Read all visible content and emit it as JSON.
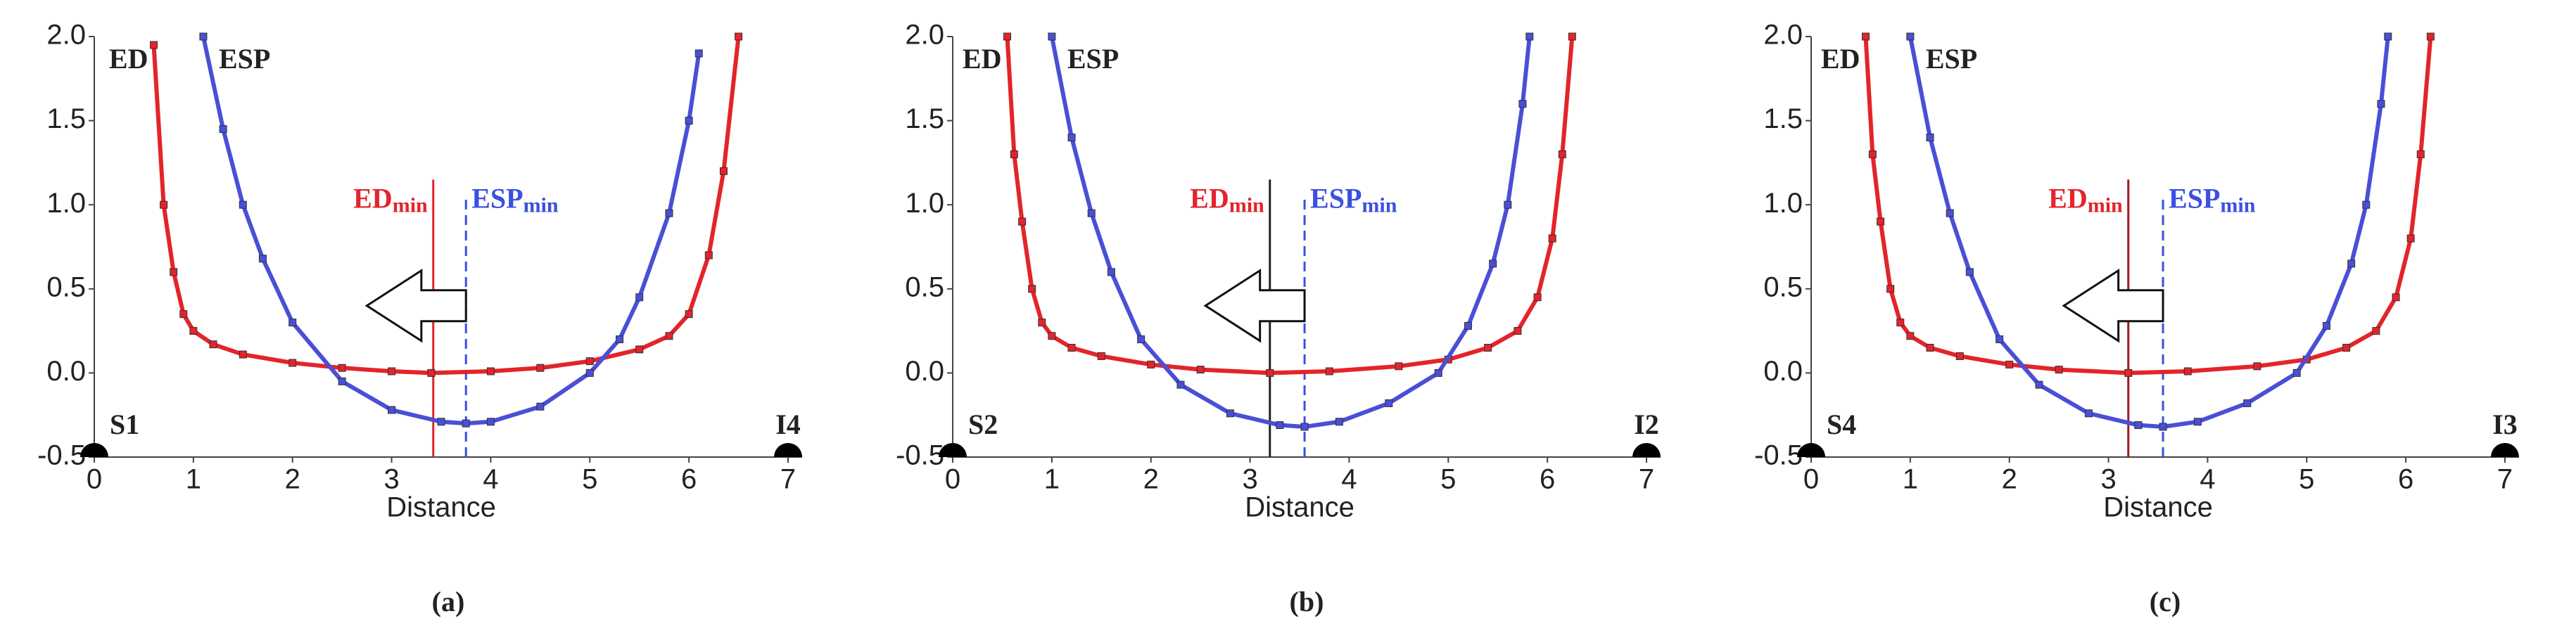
{
  "chart_data": [
    {
      "type": "line",
      "panel_label": "(a)",
      "xlabel": "Distance",
      "xlim": [
        0,
        7
      ],
      "ylim": [
        -0.5,
        2
      ],
      "xticks": [
        0,
        1,
        2,
        3,
        4,
        5,
        6,
        7
      ],
      "yticks": [
        -0.5,
        {
          "value": 0,
          "label": "0.0"
        },
        0.5,
        {
          "value": 1,
          "label": "1.0"
        },
        1.5,
        {
          "value": 2,
          "label": "2.0"
        }
      ],
      "series": [
        {
          "name": "ED",
          "color": "#e3242b",
          "x": [
            0.6,
            0.7,
            0.8,
            0.9,
            1.0,
            1.2,
            1.5,
            2,
            2.5,
            3,
            3.4,
            4,
            4.5,
            5,
            5.5,
            5.8,
            6.0,
            6.2,
            6.35,
            6.5
          ],
          "values": [
            1.95,
            1.0,
            0.6,
            0.35,
            0.25,
            0.17,
            0.11,
            0.06,
            0.03,
            0.01,
            0,
            0.01,
            0.03,
            0.07,
            0.14,
            0.22,
            0.35,
            0.7,
            1.2,
            2.0
          ]
        },
        {
          "name": "ESP",
          "color": "#4a4fd6",
          "x": [
            1.1,
            1.3,
            1.5,
            1.7,
            2,
            2.5,
            3,
            3.5,
            3.75,
            4,
            4.5,
            5,
            5.3,
            5.5,
            5.8,
            6.0,
            6.1
          ],
          "values": [
            2.0,
            1.45,
            1.0,
            0.68,
            0.3,
            -0.05,
            -0.22,
            -0.29,
            -0.3,
            -0.29,
            -0.2,
            0.0,
            0.2,
            0.45,
            0.95,
            1.5,
            1.9
          ]
        }
      ],
      "vlines": [
        {
          "label": "ED",
          "sub": "min",
          "x": 3.42,
          "color": "#e3242b",
          "dashed": false
        },
        {
          "label": "ESP",
          "sub": "min",
          "x": 3.75,
          "color": "#3b4fe0",
          "dashed": true
        }
      ],
      "points": [
        {
          "name": "S1",
          "x": 0,
          "y": -0.5
        },
        {
          "name": "I4",
          "x": 7,
          "y": -0.5
        }
      ]
    },
    {
      "type": "line",
      "panel_label": "(b)",
      "xlabel": "Distance",
      "xlim": [
        0,
        7
      ],
      "ylim": [
        -0.5,
        2
      ],
      "xticks": [
        0,
        1,
        2,
        3,
        4,
        5,
        6,
        7
      ],
      "yticks": [
        -0.5,
        {
          "value": 0,
          "label": "0.0"
        },
        0.5,
        {
          "value": 1,
          "label": "1.0"
        },
        1.5,
        {
          "value": 2,
          "label": "2.0"
        }
      ],
      "series": [
        {
          "name": "ED",
          "color": "#e3242b",
          "x": [
            0.55,
            0.62,
            0.7,
            0.8,
            0.9,
            1.0,
            1.2,
            1.5,
            2,
            2.5,
            3.2,
            3.8,
            4.5,
            5,
            5.4,
            5.7,
            5.9,
            6.05,
            6.15,
            6.25
          ],
          "values": [
            2.0,
            1.3,
            0.9,
            0.5,
            0.3,
            0.22,
            0.15,
            0.1,
            0.05,
            0.02,
            0,
            0.01,
            0.04,
            0.08,
            0.15,
            0.25,
            0.45,
            0.8,
            1.3,
            2.0
          ]
        },
        {
          "name": "ESP",
          "color": "#4a4fd6",
          "x": [
            1.0,
            1.2,
            1.4,
            1.6,
            1.9,
            2.3,
            2.8,
            3.3,
            3.55,
            3.9,
            4.4,
            4.9,
            5.2,
            5.45,
            5.6,
            5.75,
            5.82
          ],
          "values": [
            2.0,
            1.4,
            0.95,
            0.6,
            0.2,
            -0.07,
            -0.24,
            -0.31,
            -0.32,
            -0.29,
            -0.18,
            0.0,
            0.28,
            0.65,
            1.0,
            1.6,
            2.0
          ]
        }
      ],
      "vlines": [
        {
          "label": "ED",
          "sub": "min",
          "x": 3.2,
          "color": "#222222",
          "dashed": false
        },
        {
          "label": "ESP",
          "sub": "min",
          "x": 3.55,
          "color": "#3b4fe0",
          "dashed": true
        }
      ],
      "points": [
        {
          "name": "S2",
          "x": 0,
          "y": -0.5
        },
        {
          "name": "I2",
          "x": 7,
          "y": -0.5
        }
      ]
    },
    {
      "type": "line",
      "panel_label": "(c)",
      "xlabel": "Distance",
      "xlim": [
        0,
        7
      ],
      "ylim": [
        -0.5,
        2
      ],
      "xticks": [
        0,
        1,
        2,
        3,
        4,
        5,
        6,
        7
      ],
      "yticks": [
        -0.5,
        {
          "value": 0,
          "label": "0.0"
        },
        0.5,
        {
          "value": 1,
          "label": "1.0"
        },
        1.5,
        {
          "value": 2,
          "label": "2.0"
        }
      ],
      "series": [
        {
          "name": "ED",
          "color": "#e3242b",
          "x": [
            0.55,
            0.62,
            0.7,
            0.8,
            0.9,
            1.0,
            1.2,
            1.5,
            2,
            2.5,
            3.2,
            3.8,
            4.5,
            5,
            5.4,
            5.7,
            5.9,
            6.05,
            6.15,
            6.25
          ],
          "values": [
            2.0,
            1.3,
            0.9,
            0.5,
            0.3,
            0.22,
            0.15,
            0.1,
            0.05,
            0.02,
            0,
            0.01,
            0.04,
            0.08,
            0.15,
            0.25,
            0.45,
            0.8,
            1.3,
            2.0
          ]
        },
        {
          "name": "ESP",
          "color": "#4a4fd6",
          "x": [
            1.0,
            1.2,
            1.4,
            1.6,
            1.9,
            2.3,
            2.8,
            3.3,
            3.55,
            3.9,
            4.4,
            4.9,
            5.2,
            5.45,
            5.6,
            5.75,
            5.82
          ],
          "values": [
            2.0,
            1.4,
            0.95,
            0.6,
            0.2,
            -0.07,
            -0.24,
            -0.31,
            -0.32,
            -0.29,
            -0.18,
            0.0,
            0.28,
            0.65,
            1.0,
            1.6,
            2.0
          ]
        }
      ],
      "vlines": [
        {
          "label": "ED",
          "sub": "min",
          "x": 3.2,
          "color": "#a01818",
          "dashed": false
        },
        {
          "label": "ESP",
          "sub": "min",
          "x": 3.55,
          "color": "#3b4fe0",
          "dashed": true
        }
      ],
      "points": [
        {
          "name": "S4",
          "x": 0,
          "y": -0.5
        },
        {
          "name": "I3",
          "x": 7,
          "y": -0.5
        }
      ]
    }
  ]
}
